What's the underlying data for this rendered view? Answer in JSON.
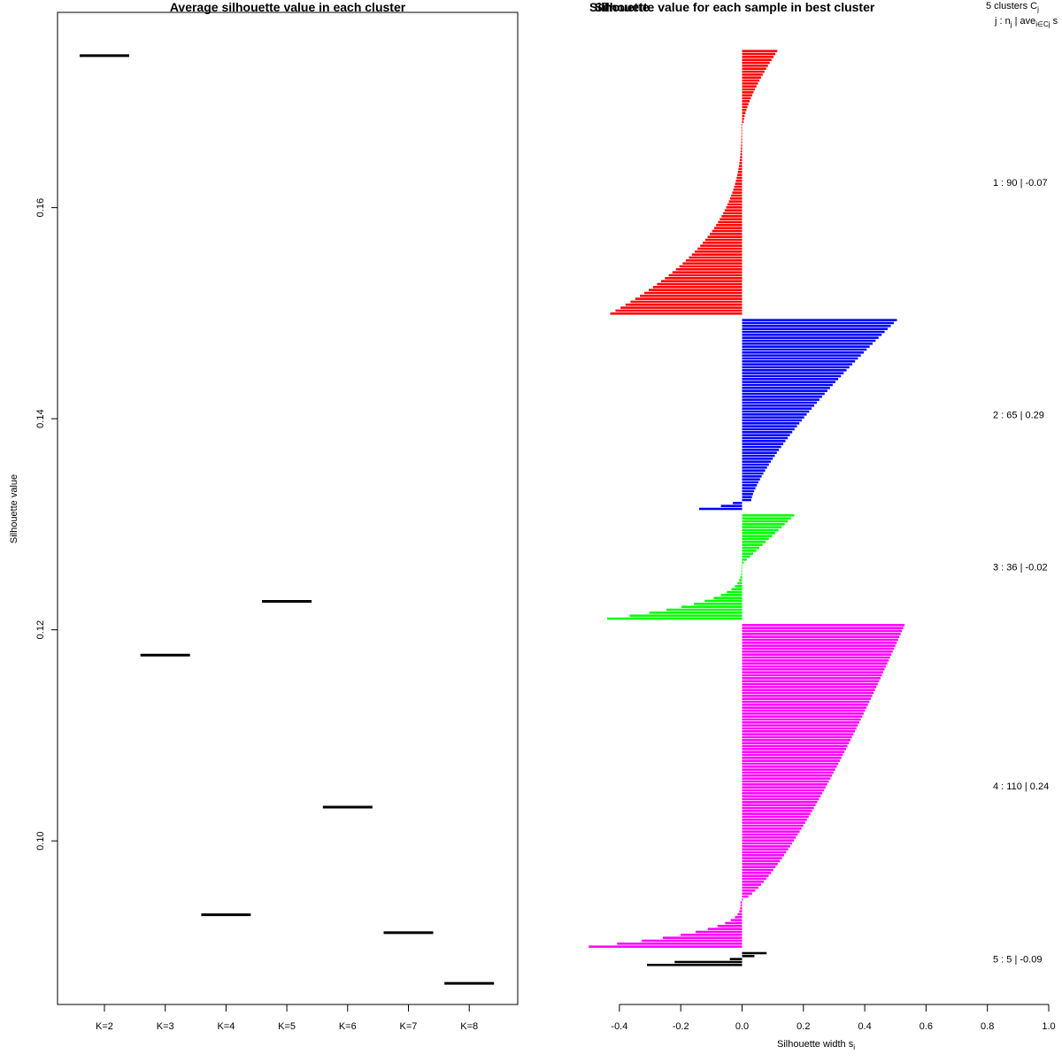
{
  "chart_data": [
    {
      "type": "scatter",
      "marker": "horizontal-segment",
      "title": "Average silhouette value in each cluster",
      "xlabel": "",
      "ylabel": "Silhouette value",
      "categories": [
        "K=2",
        "K=3",
        "K=4",
        "K=5",
        "K=6",
        "K=7",
        "K=8"
      ],
      "values": [
        0.1744,
        0.1176,
        0.093,
        0.1227,
        0.1032,
        0.0913,
        0.0865
      ],
      "ylim": [
        0.0845,
        0.1785
      ],
      "yticks": [
        "0.10",
        "0.12",
        "0.14",
        "0.16"
      ],
      "yticks_values": [
        0.1,
        0.12,
        0.14,
        0.16
      ]
    },
    {
      "type": "bar",
      "orientation": "horizontal",
      "title": "Silhouette value for each sample in best cluster",
      "title_overlap_text": "Silhouette",
      "xlabel": "Silhouette width s",
      "xlabel_subscript": "i",
      "xlim": [
        -0.4,
        1.0
      ],
      "xticks": [
        "-0.4",
        "-0.2",
        "0.0",
        "0.2",
        "0.4",
        "0.6",
        "0.8",
        "1.0"
      ],
      "xticks_values": [
        -0.4,
        -0.2,
        0.0,
        0.2,
        0.4,
        0.6,
        0.8,
        1.0
      ],
      "legend_header": {
        "line1": "5  clusters  C",
        "line1_sub": "j",
        "line2": "j :  n",
        "line2_sub": "j",
        "line2_rest": " | ave",
        "line2_sub2": "i∈Cj",
        "line2_end": "  s"
      },
      "clusters": [
        {
          "label": "1 :  90  |  -0.07",
          "n": 90,
          "avg": -0.07,
          "color": "#ff0000",
          "pos_count": 25,
          "pos_start": 0.115,
          "pos_end": 0.005,
          "pos_pow": 1.4,
          "neg_count": 65,
          "neg_start": -0.002,
          "neg_end": -0.43,
          "neg_pow": 2.6
        },
        {
          "label": "2 :  65  |  0.29",
          "n": 65,
          "avg": 0.29,
          "color": "#0000ff",
          "pos_count": 62,
          "pos_start": 0.505,
          "pos_end": 0.03,
          "pos_pow": 1.3,
          "neg_count": 3,
          "neg_start": -0.03,
          "neg_end": -0.14,
          "neg_pow": 1.5
        },
        {
          "label": "3 :  36  |  -0.02",
          "n": 36,
          "avg": -0.02,
          "color": "#00ff00",
          "pos_count": 17,
          "pos_start": 0.17,
          "pos_end": 0.005,
          "pos_pow": 1.0,
          "neg_count": 19,
          "neg_start": -0.002,
          "neg_end": -0.44,
          "neg_pow": 3.2
        },
        {
          "label": "4 :  110  |  0.24",
          "n": 110,
          "avg": 0.24,
          "color": "#ff00ff",
          "pos_count": 94,
          "pos_start": 0.53,
          "pos_end": 0.003,
          "pos_pow": 0.75,
          "neg_count": 16,
          "neg_start": -0.005,
          "neg_end": -0.5,
          "neg_pow": 3.0
        },
        {
          "label": "5 :  5  |  -0.09",
          "n": 5,
          "avg": -0.09,
          "color": "#000000",
          "values": [
            0.08,
            0.04,
            -0.04,
            -0.22,
            -0.31
          ]
        }
      ]
    }
  ]
}
